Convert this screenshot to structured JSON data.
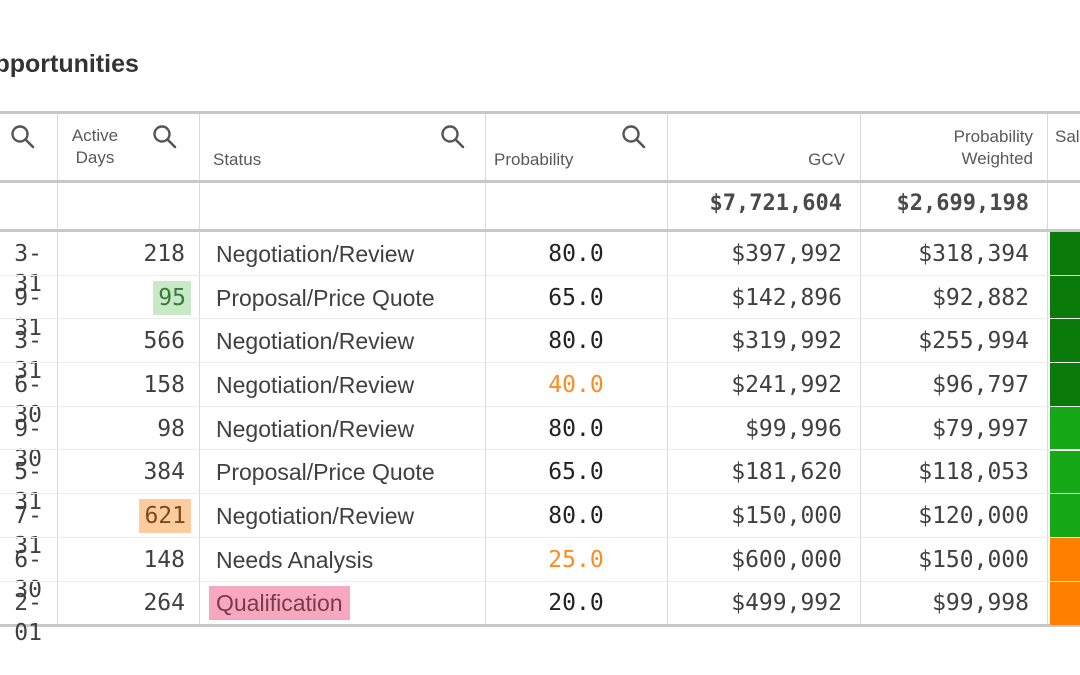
{
  "title": "Opportunities",
  "headers": {
    "active_days_line1": "Active",
    "active_days_line2": "Days",
    "status": "Status",
    "probability": "Probability",
    "gcv": "GCV",
    "prob_weighted_line1": "Probability",
    "prob_weighted_line2": "Weighted",
    "sales_partial": "Sal"
  },
  "totals": {
    "gcv": "$7,721,604",
    "weighted": "$2,699,198"
  },
  "colors": {
    "dark_green": "#0a7a0a",
    "bright_green": "#16a816",
    "orange": "#ff7f00",
    "probability_orange": "#ff8a20",
    "highlight_green": "#c7e9c7",
    "highlight_orange": "#fccc9e",
    "highlight_pink": "#f7a8c0"
  },
  "rows": [
    {
      "date": "3-31",
      "days": "218",
      "status": "Negotiation/Review",
      "prob": "80.0",
      "gcv": "$397,992",
      "weighted": "$318,394",
      "bar": "#0a7a0a"
    },
    {
      "date": "9-31",
      "days": "95",
      "status": "Proposal/Price Quote",
      "prob": "65.0",
      "gcv": "$142,896",
      "weighted": "$92,882",
      "bar": "#0a7a0a"
    },
    {
      "date": "3-31",
      "days": "566",
      "status": "Negotiation/Review",
      "prob": "80.0",
      "gcv": "$319,992",
      "weighted": "$255,994",
      "bar": "#0a7a0a"
    },
    {
      "date": "6-30",
      "days": "158",
      "status": "Negotiation/Review",
      "prob": "40.0",
      "gcv": "$241,992",
      "weighted": "$96,797",
      "bar": "#0a7a0a"
    },
    {
      "date": "9-30",
      "days": "98",
      "status": "Negotiation/Review",
      "prob": "80.0",
      "gcv": "$99,996",
      "weighted": "$79,997",
      "bar": "#16a816"
    },
    {
      "date": "5-31",
      "days": "384",
      "status": "Proposal/Price Quote",
      "prob": "65.0",
      "gcv": "$181,620",
      "weighted": "$118,053",
      "bar": "#16a816"
    },
    {
      "date": "7-31",
      "days": "621",
      "status": "Negotiation/Review",
      "prob": "80.0",
      "gcv": "$150,000",
      "weighted": "$120,000",
      "bar": "#16a816"
    },
    {
      "date": "6-30",
      "days": "148",
      "status": "Needs Analysis",
      "prob": "25.0",
      "gcv": "$600,000",
      "weighted": "$150,000",
      "bar": "#ff7f00"
    },
    {
      "date": "2-01",
      "days": "264",
      "status": "Qualification",
      "prob": "20.0",
      "gcv": "$499,992",
      "weighted": "$99,998",
      "bar": "#ff7f00"
    }
  ]
}
